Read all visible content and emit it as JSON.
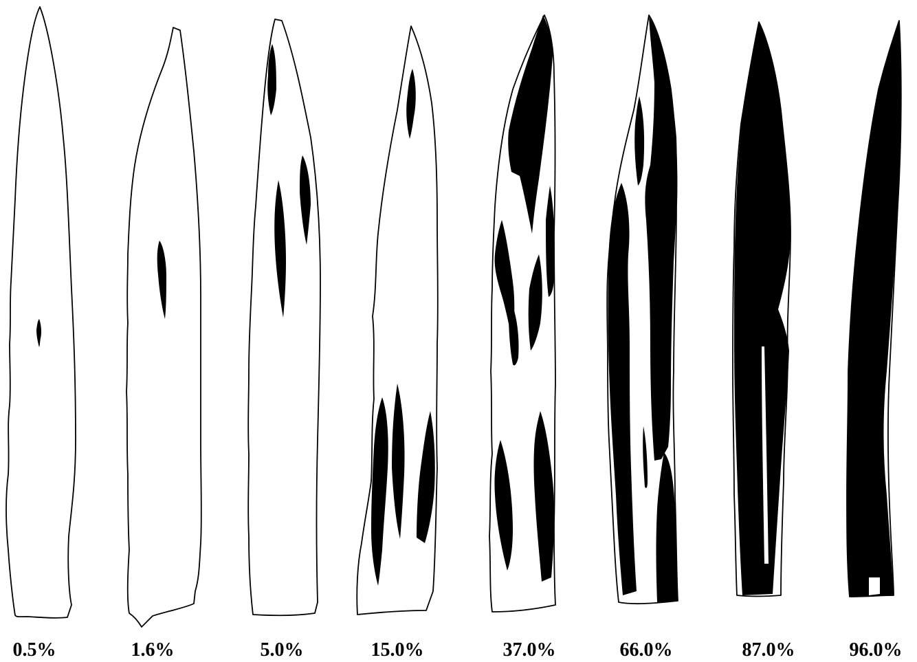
{
  "figure": {
    "leaves": [
      {
        "id": "leaf-1",
        "label": "0.5%"
      },
      {
        "id": "leaf-2",
        "label": "1.6%"
      },
      {
        "id": "leaf-3",
        "label": "5.0%"
      },
      {
        "id": "leaf-4",
        "label": "15.0%"
      },
      {
        "id": "leaf-5",
        "label": "37.0%"
      },
      {
        "id": "leaf-6",
        "label": "66.0%"
      },
      {
        "id": "leaf-7",
        "label": "87.0%"
      },
      {
        "id": "leaf-8",
        "label": "96.0%"
      }
    ]
  },
  "colors": {
    "background": "#ffffff",
    "lesion": "#000000",
    "outline": "#000000"
  }
}
